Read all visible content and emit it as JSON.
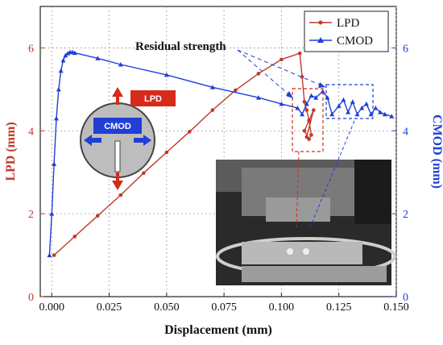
{
  "chart_data": {
    "type": "line",
    "xlabel": "Displacement (mm)",
    "ylabel_left": "LPD (mm)",
    "ylabel_right": "CMOD (mm)",
    "xlim": [
      -0.005,
      0.15
    ],
    "ylim_left": [
      0,
      7
    ],
    "ylim_right": [
      0,
      7
    ],
    "x_ticks": [
      "0.000",
      "0.025",
      "0.050",
      "0.075",
      "0.100",
      "0.125",
      "0.150"
    ],
    "x_tick_values": [
      0,
      0.025,
      0.05,
      0.075,
      0.1,
      0.125,
      0.15
    ],
    "y_ticks_left": [
      "0",
      "2",
      "4",
      "6"
    ],
    "y_ticks_right": [
      "0",
      "2",
      "4",
      "6"
    ],
    "y_tick_values": [
      0,
      2,
      4,
      6
    ],
    "grid": true,
    "legend_position": "top-right",
    "series": [
      {
        "name": "LPD",
        "color": "#c0392b",
        "axis": "left",
        "marker": "circle",
        "x": [
          0.001,
          0.01,
          0.02,
          0.03,
          0.04,
          0.05,
          0.06,
          0.07,
          0.08,
          0.09,
          0.1,
          0.108,
          0.109,
          0.11,
          0.111,
          0.112,
          0.113,
          0.112,
          0.11,
          0.112,
          0.114,
          0.111
        ],
        "y": [
          1.0,
          1.45,
          1.95,
          2.45,
          2.98,
          3.48,
          3.98,
          4.5,
          4.98,
          5.38,
          5.72,
          5.87,
          5.3,
          4.7,
          4.5,
          4.25,
          3.9,
          3.8,
          4.0,
          4.25,
          4.5,
          3.85
        ]
      },
      {
        "name": "CMOD",
        "color": "#1f3fd6",
        "axis": "right",
        "marker": "triangle",
        "x": [
          -0.001,
          0.0,
          0.001,
          0.002,
          0.003,
          0.004,
          0.005,
          0.006,
          0.007,
          0.008,
          0.009,
          0.01,
          0.02,
          0.03,
          0.05,
          0.07,
          0.09,
          0.1,
          0.107,
          0.109,
          0.111,
          0.113,
          0.115,
          0.118,
          0.12,
          0.122,
          0.125,
          0.127,
          0.129,
          0.131,
          0.133,
          0.135,
          0.137,
          0.139,
          0.141,
          0.143,
          0.145,
          0.148
        ],
        "y": [
          1.0,
          2.0,
          3.2,
          4.3,
          5.0,
          5.45,
          5.7,
          5.82,
          5.87,
          5.9,
          5.9,
          5.88,
          5.75,
          5.6,
          5.35,
          5.05,
          4.8,
          4.65,
          4.55,
          4.4,
          4.65,
          4.85,
          4.8,
          4.95,
          4.8,
          4.4,
          4.6,
          4.75,
          4.45,
          4.7,
          4.4,
          4.55,
          4.65,
          4.4,
          4.55,
          4.45,
          4.4,
          4.35
        ]
      }
    ],
    "annotations": [
      "Residual strength"
    ],
    "inset_labels": {
      "lpd": "LPD",
      "cmod": "CMOD"
    }
  }
}
